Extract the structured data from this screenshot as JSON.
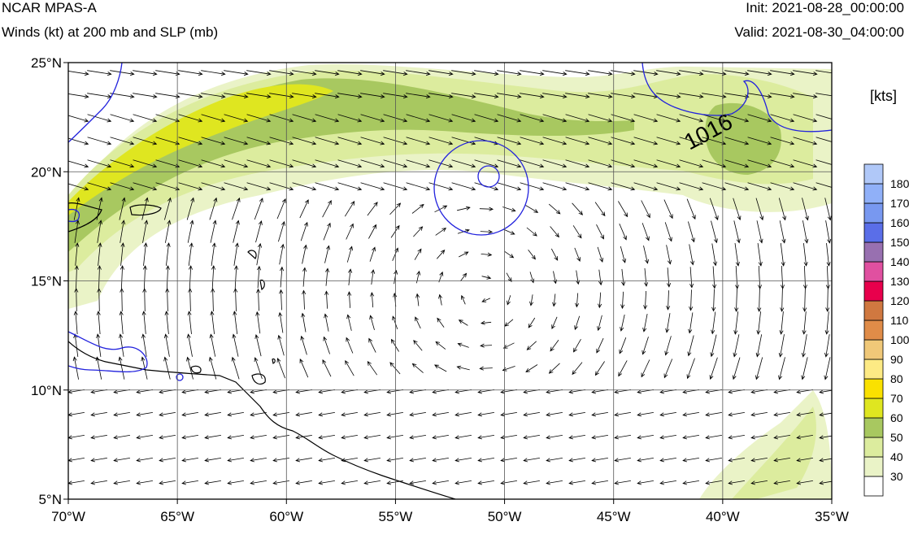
{
  "header": {
    "title": "NCAR MPAS-A",
    "subtitle": "Winds (kt) at 200 mb and SLP (mb)",
    "init": "Init: 2021-08-28_00:00:00",
    "valid": "Valid: 2021-08-30_04:00:00"
  },
  "map": {
    "lon_range": [
      -70,
      -35
    ],
    "lat_range": [
      5,
      25
    ],
    "lon_ticks": [
      -70,
      -65,
      -60,
      -55,
      -50,
      -45,
      -40,
      -35
    ],
    "lon_labels": [
      "70°W",
      "65°W",
      "60°W",
      "55°W",
      "50°W",
      "45°W",
      "40°W",
      "35°W"
    ],
    "lat_ticks": [
      5,
      10,
      15,
      20,
      25
    ],
    "lat_labels": [
      "5°N",
      "10°N",
      "15°N",
      "20°N",
      "25°N"
    ],
    "contour_label": "1016",
    "anticyclone_center": [
      -51,
      14.5
    ]
  },
  "colorbar": {
    "units": "[kts]",
    "levels": [
      "30",
      "40",
      "50",
      "60",
      "70",
      "80",
      "90",
      "100",
      "110",
      "120",
      "130",
      "140",
      "150",
      "160",
      "170",
      "180"
    ],
    "colors": [
      "#ffffff",
      "#eaf3c7",
      "#dcec9e",
      "#a8c860",
      "#dfe620",
      "#fae100",
      "#fdea84",
      "#f0c878",
      "#e08c48",
      "#d07840",
      "#e8004c",
      "#e050a0",
      "#9870b0",
      "#5a6ee8",
      "#7898f0",
      "#90b0f8",
      "#b0c8f8"
    ]
  },
  "colors": {
    "slp_contour": "#2222dd",
    "coast": "#000000",
    "grid": "#555555"
  }
}
